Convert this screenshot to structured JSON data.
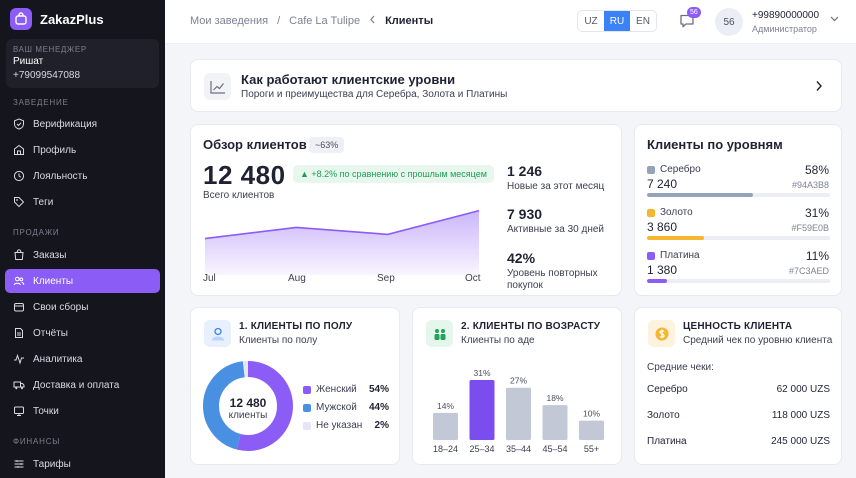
{
  "app": {
    "name": "ZakazPlus"
  },
  "sidebar": {
    "manager_label": "ВАШ МЕНЕДЖЕР",
    "manager_name": "Ришат",
    "manager_phone": "+79099547088",
    "sections": [
      {
        "title": "ЗАВЕДЕНИЕ",
        "items": [
          {
            "label": "Верификация",
            "icon": "shield-check-icon"
          },
          {
            "label": "Профиль",
            "icon": "profile-icon"
          },
          {
            "label": "Лояльность",
            "icon": "loyalty-icon"
          },
          {
            "label": "Теги",
            "icon": "tag-icon"
          }
        ]
      },
      {
        "title": "ПРОДАЖИ",
        "items": [
          {
            "label": "Заказы",
            "icon": "orders-icon"
          },
          {
            "label": "Клиенты",
            "icon": "clients-icon",
            "active": true
          },
          {
            "label": "Свои сборы",
            "icon": "collections-icon"
          },
          {
            "label": "Отчёты",
            "icon": "reports-icon"
          },
          {
            "label": "Аналитика",
            "icon": "analytics-icon"
          },
          {
            "label": "Доставка и оплата",
            "icon": "delivery-icon"
          },
          {
            "label": "Точки",
            "icon": "locations-icon"
          }
        ]
      },
      {
        "title": "ФИНАНСЫ",
        "items": [
          {
            "label": "Тарифы",
            "icon": "tariffs-icon"
          }
        ]
      }
    ]
  },
  "header": {
    "breadcrumbs": [
      "Мои заведения",
      "Cafe La Tulipe",
      "Клиенты"
    ],
    "languages": [
      "UZ",
      "RU",
      "EN"
    ],
    "active_language": "RU",
    "chat_badge": "56",
    "avatar_text": "56",
    "user_phone": "+99890000000",
    "user_role": "Администратор"
  },
  "banner": {
    "title": "Как работают клиентские уровни",
    "subtitle": "Пороги и преимущества для Серебра, Золота и Платины"
  },
  "overview": {
    "title": "Обзор клиентов",
    "pill": "~63%",
    "total": "12 480",
    "total_label": "Всего клиентов",
    "trend": "▲ +8.2% по сравнению с прошлым месяцем",
    "stats": [
      {
        "value": "1 246",
        "label": "Новые за этот месяц"
      },
      {
        "value": "7 930",
        "label": "Активные за 30 дней"
      },
      {
        "value": "42%",
        "label": "Уровень повторных покупок"
      }
    ]
  },
  "levels": {
    "title": "Клиенты по уровням",
    "items": [
      {
        "name": "Серебро",
        "count": "7 240",
        "pct": "58%",
        "hex": "#94A3B8",
        "fraction": 0.58
      },
      {
        "name": "Золото",
        "count": "3 860",
        "pct": "31%",
        "hex": "#F59E0B",
        "fraction": 0.31
      },
      {
        "name": "Платина",
        "count": "1 380",
        "pct": "11%",
        "hex": "#7C3AED",
        "fraction": 0.11
      }
    ]
  },
  "gender": {
    "title": "1. КЛИЕНТЫ ПО ПОЛУ",
    "subtitle": "Клиенты по полу",
    "center_value": "12 480",
    "center_label": "клиенты",
    "items": [
      {
        "label": "Женский",
        "pct": "54%",
        "value": 54,
        "color": "#8b5cf6"
      },
      {
        "label": "Мужской",
        "pct": "44%",
        "value": 44,
        "color": "#4a90e2"
      },
      {
        "label": "Не указан",
        "pct": "2%",
        "value": 2,
        "color": "#e6e4f5"
      }
    ]
  },
  "age": {
    "title": "2. КЛИЕНТЫ ПО ВОЗРАСТУ",
    "subtitle": "Клиенты по аде"
  },
  "value_card": {
    "title": "ЦЕННОСТЬ КЛИЕНТА",
    "subtitle": "Средний чек по уровню клиента",
    "avg_label": "Средние чеки:",
    "rows": [
      {
        "label": "Серебро",
        "value": "62 000 UZS"
      },
      {
        "label": "Золото",
        "value": "118 000 UZS"
      },
      {
        "label": "Платина",
        "value": "245 000 UZS"
      }
    ]
  },
  "chart_data": [
    {
      "type": "area",
      "categories": [
        "Jul",
        "Aug",
        "Sep",
        "Oct"
      ],
      "series": [
        {
          "values": [
            52,
            68,
            58,
            92
          ]
        }
      ],
      "ylim": [
        0,
        100
      ]
    },
    {
      "type": "bar",
      "categories": [
        "18–24",
        "25–34",
        "35–44",
        "45–54",
        "55+"
      ],
      "values": [
        14,
        31,
        27,
        18,
        10
      ],
      "value_labels": [
        "14%",
        "31%",
        "27%",
        "18%",
        "10%"
      ],
      "highlight_index": 1,
      "ylim": [
        0,
        31
      ]
    }
  ]
}
